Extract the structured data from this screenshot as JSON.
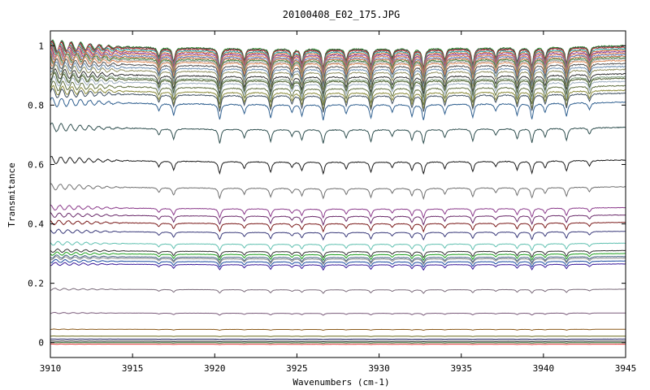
{
  "chart_data": {
    "type": "line",
    "title": "20100408_E02_175.JPG",
    "xlabel": "Wavenumbers (cm-1)",
    "ylabel": "Transmitance",
    "xlim": [
      3910,
      3945
    ],
    "ylim": [
      -0.05,
      1.05
    ],
    "x_ticks": [
      3910,
      3915,
      3920,
      3925,
      3930,
      3935,
      3940,
      3945
    ],
    "y_ticks": [
      0,
      0.2,
      0.4,
      0.6,
      0.8,
      1
    ],
    "y_tick_labels": [
      "0",
      "0.2",
      "0.4",
      "0.6",
      "0.8",
      "1"
    ],
    "grid": false,
    "legend": "none",
    "absorption_lines_cm1": [
      3916.6,
      3917.5,
      3920.3,
      3921.8,
      3923.4,
      3924.7,
      3925.3,
      3926.6,
      3928.0,
      3929.5,
      3930.8,
      3932.0,
      3932.7,
      3934.0,
      3935.7,
      3937.1,
      3938.4,
      3939.3,
      3940.1,
      3941.4,
      3942.8
    ],
    "series_baselines": [
      1.0,
      0.998,
      0.995,
      0.99,
      0.985,
      0.98,
      0.975,
      0.97,
      0.965,
      0.96,
      0.955,
      0.95,
      0.94,
      0.93,
      0.92,
      0.905,
      0.895,
      0.89,
      0.88,
      0.865,
      0.85,
      0.84,
      0.81,
      0.725,
      0.615,
      0.525,
      0.455,
      0.43,
      0.405,
      0.375,
      0.335,
      0.31,
      0.3,
      0.29,
      0.285,
      0.275,
      0.265,
      0.18,
      0.1,
      0.045,
      0.022,
      0.012,
      0.005,
      0.0,
      -0.005
    ],
    "series_colors": [
      "#2b8a2b",
      "#444444",
      "#b03030",
      "#20a0a0",
      "#d06030",
      "#8040a0",
      "#e08050",
      "#6080c0",
      "#c07040",
      "#408040",
      "#a0a0a0",
      "#e09060",
      "#505050",
      "#7090b0",
      "#909060",
      "#303030",
      "#80a080",
      "#506030",
      "#a0b0c0",
      "#607040",
      "#8b8b3a",
      "#405060",
      "#2f5f8f",
      "#2f4f4f",
      "#1a1a1a",
      "#707070",
      "#8b3a8b",
      "#6a2a6a",
      "#7a1a1a",
      "#3a3a7a",
      "#60c0b0",
      "#333333",
      "#20a020",
      "#406080",
      "#909090",
      "#1a4aa0",
      "#3a1a9a",
      "#7a6a7a",
      "#7a5a7a",
      "#8b5a1a",
      "#6a6a1a",
      "#1a1a5a",
      "#1a1a1a",
      "#2a6a2a",
      "#e03030"
    ]
  }
}
